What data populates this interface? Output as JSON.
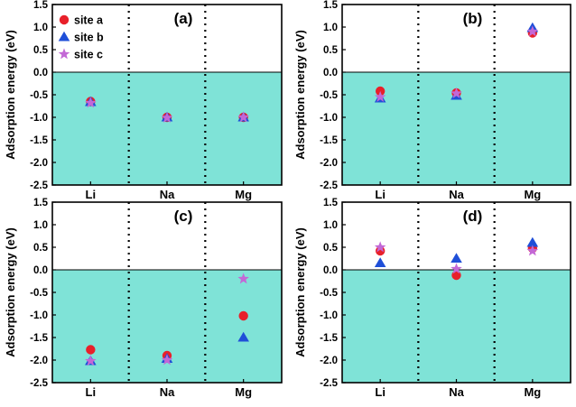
{
  "colors": {
    "fill_below_zero": "#7fe3d7",
    "site_a": "#e8202a",
    "site_b": "#1f4fd8",
    "site_c": "#c368d6",
    "axis": "#000000"
  },
  "legend": {
    "entries": [
      {
        "label": "site a",
        "marker": "circle",
        "color_key": "site_a"
      },
      {
        "label": "site b",
        "marker": "triangle",
        "color_key": "site_b"
      },
      {
        "label": "site c",
        "marker": "star",
        "color_key": "site_c"
      }
    ]
  },
  "chart_data": [
    {
      "type": "scatter",
      "panel_label": "(a)",
      "ylabel": "Adsorption energy (eV)",
      "ylim": [
        -2.5,
        1.5
      ],
      "yticks": [
        "1.5",
        "1.0",
        "0.5",
        "0.0",
        "-0.5",
        "-1.0",
        "-1.5",
        "-2.0",
        "-2.5"
      ],
      "categories": [
        "Li",
        "Na",
        "Mg"
      ],
      "series": [
        {
          "name": "site a",
          "values": [
            -0.65,
            -1.0,
            -1.0
          ]
        },
        {
          "name": "site b",
          "values": [
            -0.66,
            -1.0,
            -1.0
          ]
        },
        {
          "name": "site c",
          "values": [
            -0.68,
            -1.01,
            -1.0
          ]
        }
      ],
      "shaded_region": "below 0.0",
      "legend": true
    },
    {
      "type": "scatter",
      "panel_label": "(b)",
      "ylabel": "Adsorption energy (eV)",
      "ylim": [
        -2.5,
        1.5
      ],
      "yticks": [
        "1.5",
        "1.0",
        "0.5",
        "0.0",
        "-0.5",
        "-1.0",
        "-1.5",
        "-2.0",
        "-2.5"
      ],
      "categories": [
        "Li",
        "Na",
        "Mg"
      ],
      "series": [
        {
          "name": "site a",
          "values": [
            -0.42,
            -0.46,
            0.87
          ]
        },
        {
          "name": "site b",
          "values": [
            -0.58,
            -0.52,
            0.98
          ]
        },
        {
          "name": "site c",
          "values": [
            -0.55,
            -0.47,
            0.9
          ]
        }
      ],
      "shaded_region": "below 0.0",
      "legend": false
    },
    {
      "type": "scatter",
      "panel_label": "(c)",
      "ylabel": "Adsorption energy (eV)",
      "ylim": [
        -2.5,
        1.5
      ],
      "yticks": [
        "1.5",
        "1.0",
        "0.5",
        "0.0",
        "-0.5",
        "-1.0",
        "-1.5",
        "-2.0",
        "-2.5"
      ],
      "categories": [
        "Li",
        "Na",
        "Mg"
      ],
      "series": [
        {
          "name": "site a",
          "values": [
            -1.77,
            -1.9,
            -1.02
          ]
        },
        {
          "name": "site b",
          "values": [
            -2.02,
            -1.97,
            -1.5
          ]
        },
        {
          "name": "site c",
          "values": [
            -2.02,
            -2.0,
            -0.2
          ]
        }
      ],
      "shaded_region": "below 0.0",
      "legend": false
    },
    {
      "type": "scatter",
      "panel_label": "(d)",
      "ylabel": "Adsorption energy (eV)",
      "ylim": [
        -2.5,
        1.5
      ],
      "yticks": [
        "1.5",
        "1.0",
        "0.5",
        "0.0",
        "-0.5",
        "-1.0",
        "-1.5",
        "-2.0",
        "-2.5"
      ],
      "categories": [
        "Li",
        "Na",
        "Mg"
      ],
      "series": [
        {
          "name": "site a",
          "values": [
            0.42,
            -0.12,
            0.48
          ]
        },
        {
          "name": "site b",
          "values": [
            0.15,
            0.25,
            0.6
          ]
        },
        {
          "name": "site c",
          "values": [
            0.5,
            0.02,
            0.42
          ]
        }
      ],
      "shaded_region": "below 0.0",
      "legend": false
    }
  ]
}
